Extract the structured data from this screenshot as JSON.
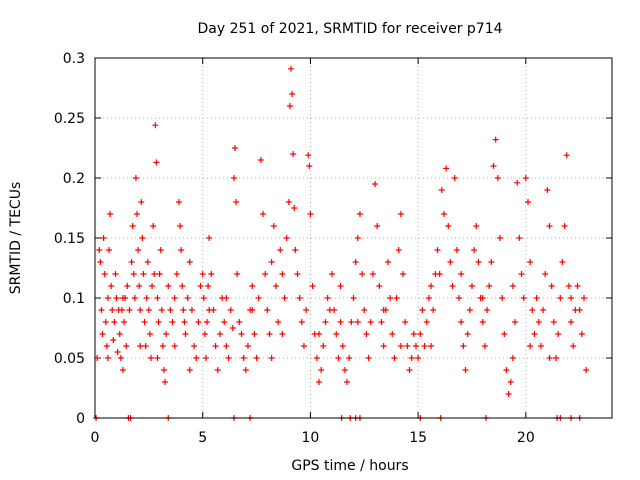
{
  "chart_data": {
    "type": "scatter",
    "title": "Day 251 of 2021, SRMTID for receiver p714",
    "xlabel": "GPS time / hours",
    "ylabel": "SRMTID / TECUs",
    "xlim": [
      0,
      24
    ],
    "ylim": [
      0,
      0.3
    ],
    "xticks": [
      0,
      5,
      10,
      15,
      20
    ],
    "xtick_labels": [
      "0",
      "5",
      "10",
      "15",
      "20"
    ],
    "yticks": [
      0,
      0.05,
      0.1,
      0.15,
      0.2,
      0.25,
      0.3
    ],
    "ytick_labels": [
      "0",
      "0.05",
      "0.1",
      "0.15",
      "0.2",
      "0.25",
      "0.3"
    ],
    "grid": true,
    "marker": "+",
    "series": [
      {
        "name": "SRMTID",
        "color": "#ff0000",
        "points": [
          [
            0.1,
            0.05
          ],
          [
            0.2,
            0.14
          ],
          [
            0.25,
            0.13
          ],
          [
            0.3,
            0.09
          ],
          [
            0.35,
            0.07
          ],
          [
            0.4,
            0.15
          ],
          [
            0.45,
            0.12
          ],
          [
            0.5,
            0.08
          ],
          [
            0.55,
            0.06
          ],
          [
            0.6,
            0.1
          ],
          [
            0.65,
            0.14
          ],
          [
            0.7,
            0.17
          ],
          [
            0.75,
            0.11
          ],
          [
            0.8,
            0.09
          ],
          [
            0.85,
            0.065
          ],
          [
            0.9,
            0.08
          ],
          [
            0.95,
            0.12
          ],
          [
            1.0,
            0.1
          ],
          [
            1.05,
            0.055
          ],
          [
            1.1,
            0.09
          ],
          [
            1.15,
            0.07
          ],
          [
            1.2,
            0.05
          ],
          [
            1.25,
            0.09
          ],
          [
            1.3,
            0.04
          ],
          [
            1.35,
            0.08
          ],
          [
            1.4,
            0.1
          ],
          [
            1.45,
            0.06
          ],
          [
            1.5,
            0.11
          ],
          [
            1.6,
            0.09
          ],
          [
            1.7,
            0.13
          ],
          [
            1.75,
            0.16
          ],
          [
            1.8,
            0.12
          ],
          [
            1.85,
            0.1
          ],
          [
            1.9,
            0.2
          ],
          [
            1.95,
            0.17
          ],
          [
            2.0,
            0.14
          ],
          [
            2.05,
            0.11
          ],
          [
            2.1,
            0.09
          ],
          [
            2.15,
            0.18
          ],
          [
            2.2,
            0.15
          ],
          [
            2.25,
            0.12
          ],
          [
            2.3,
            0.08
          ],
          [
            2.35,
            0.06
          ],
          [
            2.4,
            0.1
          ],
          [
            2.45,
            0.13
          ],
          [
            2.5,
            0.09
          ],
          [
            2.55,
            0.07
          ],
          [
            2.6,
            0.05
          ],
          [
            2.65,
            0.11
          ],
          [
            2.7,
            0.16
          ],
          [
            2.75,
            0.12
          ],
          [
            2.8,
            0.244
          ],
          [
            2.85,
            0.213
          ],
          [
            2.9,
            0.1
          ],
          [
            2.95,
            0.08
          ],
          [
            3.0,
            0.12
          ],
          [
            3.05,
            0.14
          ],
          [
            3.1,
            0.09
          ],
          [
            3.15,
            0.06
          ],
          [
            3.2,
            0.04
          ],
          [
            3.25,
            0.03
          ],
          [
            3.3,
            0.07
          ],
          [
            3.4,
            0.11
          ],
          [
            3.5,
            0.09
          ],
          [
            3.6,
            0.08
          ],
          [
            3.7,
            0.1
          ],
          [
            3.8,
            0.12
          ],
          [
            3.9,
            0.18
          ],
          [
            3.95,
            0.16
          ],
          [
            4.0,
            0.14
          ],
          [
            4.05,
            0.11
          ],
          [
            4.1,
            0.09
          ],
          [
            4.15,
            0.08
          ],
          [
            4.2,
            0.07
          ],
          [
            4.3,
            0.1
          ],
          [
            4.4,
            0.13
          ],
          [
            4.5,
            0.09
          ],
          [
            4.6,
            0.06
          ],
          [
            4.7,
            0.05
          ],
          [
            4.8,
            0.08
          ],
          [
            4.9,
            0.11
          ],
          [
            5.0,
            0.12
          ],
          [
            5.05,
            0.1
          ],
          [
            5.1,
            0.07
          ],
          [
            5.15,
            0.05
          ],
          [
            5.2,
            0.08
          ],
          [
            5.25,
            0.11
          ],
          [
            5.3,
            0.15
          ],
          [
            5.4,
            0.12
          ],
          [
            5.5,
            0.09
          ],
          [
            5.6,
            0.06
          ],
          [
            5.7,
            0.04
          ],
          [
            5.8,
            0.07
          ],
          [
            5.9,
            0.1
          ],
          [
            6.0,
            0.08
          ],
          [
            6.1,
            0.06
          ],
          [
            6.2,
            0.05
          ],
          [
            6.3,
            0.09
          ],
          [
            6.4,
            0.075
          ],
          [
            6.45,
            0.2
          ],
          [
            6.5,
            0.225
          ],
          [
            6.55,
            0.18
          ],
          [
            6.6,
            0.12
          ],
          [
            6.7,
            0.08
          ],
          [
            6.8,
            0.07
          ],
          [
            6.9,
            0.05
          ],
          [
            7.0,
            0.04
          ],
          [
            7.1,
            0.06
          ],
          [
            7.2,
            0.09
          ],
          [
            7.3,
            0.11
          ],
          [
            7.4,
            0.07
          ],
          [
            7.5,
            0.05
          ],
          [
            7.6,
            0.1
          ],
          [
            7.7,
            0.215
          ],
          [
            7.8,
            0.17
          ],
          [
            7.9,
            0.12
          ],
          [
            8.0,
            0.09
          ],
          [
            8.1,
            0.07
          ],
          [
            8.2,
            0.13
          ],
          [
            8.3,
            0.16
          ],
          [
            8.4,
            0.11
          ],
          [
            8.5,
            0.08
          ],
          [
            8.6,
            0.14
          ],
          [
            8.7,
            0.12
          ],
          [
            8.8,
            0.1
          ],
          [
            8.9,
            0.15
          ],
          [
            9.0,
            0.18
          ],
          [
            9.05,
            0.26
          ],
          [
            9.1,
            0.291
          ],
          [
            9.15,
            0.27
          ],
          [
            9.2,
            0.22
          ],
          [
            9.25,
            0.175
          ],
          [
            9.3,
            0.14
          ],
          [
            9.4,
            0.12
          ],
          [
            9.5,
            0.1
          ],
          [
            9.6,
            0.08
          ],
          [
            9.7,
            0.06
          ],
          [
            9.8,
            0.09
          ],
          [
            9.9,
            0.219
          ],
          [
            9.95,
            0.21
          ],
          [
            10.0,
            0.17
          ],
          [
            10.1,
            0.11
          ],
          [
            10.2,
            0.07
          ],
          [
            10.3,
            0.05
          ],
          [
            10.4,
            0.03
          ],
          [
            10.5,
            0.04
          ],
          [
            10.6,
            0.06
          ],
          [
            10.7,
            0.08
          ],
          [
            10.8,
            0.1
          ],
          [
            10.9,
            0.09
          ],
          [
            11.0,
            0.12
          ],
          [
            11.1,
            0.09
          ],
          [
            11.2,
            0.07
          ],
          [
            11.3,
            0.05
          ],
          [
            11.4,
            0.08
          ],
          [
            11.5,
            0.06
          ],
          [
            11.6,
            0.04
          ],
          [
            11.7,
            0.03
          ],
          [
            11.8,
            0.05
          ],
          [
            11.9,
            0.08
          ],
          [
            12.0,
            0.1
          ],
          [
            12.1,
            0.13
          ],
          [
            12.2,
            0.15
          ],
          [
            12.3,
            0.17
          ],
          [
            12.4,
            0.12
          ],
          [
            12.5,
            0.09
          ],
          [
            12.6,
            0.07
          ],
          [
            12.7,
            0.05
          ],
          [
            12.8,
            0.08
          ],
          [
            12.9,
            0.12
          ],
          [
            13.0,
            0.195
          ],
          [
            13.1,
            0.16
          ],
          [
            13.2,
            0.11
          ],
          [
            13.3,
            0.08
          ],
          [
            13.4,
            0.06
          ],
          [
            13.5,
            0.09
          ],
          [
            13.6,
            0.13
          ],
          [
            13.7,
            0.1
          ],
          [
            13.8,
            0.07
          ],
          [
            13.9,
            0.05
          ],
          [
            14.0,
            0.1
          ],
          [
            14.1,
            0.14
          ],
          [
            14.2,
            0.17
          ],
          [
            14.3,
            0.12
          ],
          [
            14.4,
            0.08
          ],
          [
            14.5,
            0.06
          ],
          [
            14.6,
            0.04
          ],
          [
            14.7,
            0.05
          ],
          [
            14.8,
            0.07
          ],
          [
            14.9,
            0.06
          ],
          [
            15.0,
            0.05
          ],
          [
            15.1,
            0.07
          ],
          [
            15.2,
            0.09
          ],
          [
            15.3,
            0.06
          ],
          [
            15.4,
            0.08
          ],
          [
            15.5,
            0.1
          ],
          [
            15.6,
            0.11
          ],
          [
            15.7,
            0.09
          ],
          [
            15.8,
            0.12
          ],
          [
            15.9,
            0.14
          ],
          [
            16.0,
            0.12
          ],
          [
            16.1,
            0.19
          ],
          [
            16.2,
            0.17
          ],
          [
            16.3,
            0.208
          ],
          [
            16.4,
            0.16
          ],
          [
            16.5,
            0.13
          ],
          [
            16.6,
            0.11
          ],
          [
            16.7,
            0.2
          ],
          [
            16.8,
            0.14
          ],
          [
            16.9,
            0.1
          ],
          [
            17.0,
            0.08
          ],
          [
            17.1,
            0.06
          ],
          [
            17.2,
            0.04
          ],
          [
            17.3,
            0.07
          ],
          [
            17.4,
            0.09
          ],
          [
            17.5,
            0.11
          ],
          [
            17.6,
            0.14
          ],
          [
            17.7,
            0.16
          ],
          [
            17.8,
            0.13
          ],
          [
            17.9,
            0.1
          ],
          [
            18.0,
            0.08
          ],
          [
            18.1,
            0.06
          ],
          [
            18.2,
            0.09
          ],
          [
            18.3,
            0.11
          ],
          [
            18.4,
            0.13
          ],
          [
            18.5,
            0.21
          ],
          [
            18.6,
            0.232
          ],
          [
            18.7,
            0.2
          ],
          [
            18.8,
            0.15
          ],
          [
            18.9,
            0.1
          ],
          [
            19.0,
            0.07
          ],
          [
            19.1,
            0.04
          ],
          [
            19.2,
            0.02
          ],
          [
            19.3,
            0.03
          ],
          [
            19.4,
            0.05
          ],
          [
            19.5,
            0.08
          ],
          [
            19.6,
            0.196
          ],
          [
            19.7,
            0.15
          ],
          [
            19.8,
            0.12
          ],
          [
            19.9,
            0.1
          ],
          [
            20.0,
            0.2
          ],
          [
            20.1,
            0.18
          ],
          [
            20.2,
            0.13
          ],
          [
            20.3,
            0.09
          ],
          [
            20.4,
            0.07
          ],
          [
            20.5,
            0.1
          ],
          [
            20.6,
            0.08
          ],
          [
            20.7,
            0.06
          ],
          [
            20.8,
            0.09
          ],
          [
            20.9,
            0.12
          ],
          [
            21.0,
            0.19
          ],
          [
            21.1,
            0.16
          ],
          [
            21.2,
            0.11
          ],
          [
            21.3,
            0.08
          ],
          [
            21.4,
            0.05
          ],
          [
            21.5,
            0.07
          ],
          [
            21.6,
            0.1
          ],
          [
            21.7,
            0.13
          ],
          [
            21.8,
            0.16
          ],
          [
            21.9,
            0.219
          ],
          [
            22.0,
            0.11
          ],
          [
            22.1,
            0.08
          ],
          [
            22.2,
            0.06
          ],
          [
            22.3,
            0.09
          ],
          [
            22.4,
            0.11
          ],
          [
            22.5,
            0.09
          ],
          [
            22.6,
            0.07
          ],
          [
            22.7,
            0.1
          ],
          [
            22.8,
            0.04
          ],
          [
            0.6,
            0.05
          ],
          [
            1.3,
            0.1
          ],
          [
            2.1,
            0.06
          ],
          [
            2.9,
            0.05
          ],
          [
            3.7,
            0.06
          ],
          [
            4.4,
            0.04
          ],
          [
            5.3,
            0.09
          ],
          [
            6.1,
            0.1
          ],
          [
            7.3,
            0.09
          ],
          [
            8.2,
            0.05
          ],
          [
            8.7,
            0.07
          ],
          [
            10.4,
            0.07
          ],
          [
            11.4,
            0.11
          ],
          [
            12.2,
            0.08
          ],
          [
            13.4,
            0.09
          ],
          [
            14.2,
            0.06
          ],
          [
            15.6,
            0.06
          ],
          [
            17.0,
            0.12
          ],
          [
            18.0,
            0.1
          ],
          [
            19.4,
            0.11
          ],
          [
            20.2,
            0.06
          ],
          [
            21.1,
            0.05
          ],
          [
            22.1,
            0.1
          ]
        ]
      }
    ],
    "zero_points_x": [
      0.05,
      1.55,
      1.65,
      3.4,
      6.45,
      7.2,
      11.45,
      11.85,
      12.1,
      12.3,
      15.1,
      16.05,
      18.15,
      21.45,
      21.6,
      22.1,
      22.5
    ]
  }
}
